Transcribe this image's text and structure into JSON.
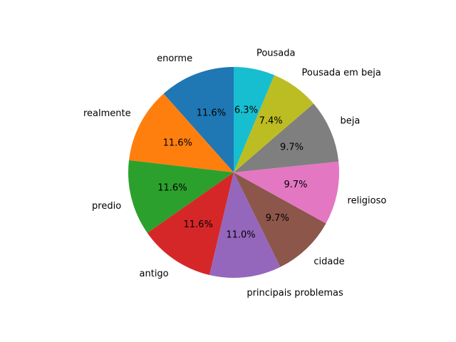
{
  "chart_data": {
    "type": "pie",
    "title": "",
    "start_angle_deg": 90,
    "direction": "counterclockwise",
    "legend": "none",
    "slices": [
      {
        "label": "enorme",
        "value": 11.6,
        "pct_label": "11.6%",
        "color": "#1f77b4"
      },
      {
        "label": "realmente",
        "value": 11.6,
        "pct_label": "11.6%",
        "color": "#ff7f0e"
      },
      {
        "label": "predio",
        "value": 11.6,
        "pct_label": "11.6%",
        "color": "#2ca02c"
      },
      {
        "label": "antigo",
        "value": 11.6,
        "pct_label": "11.6%",
        "color": "#d62728"
      },
      {
        "label": "principais problemas",
        "value": 11.0,
        "pct_label": "11.0%",
        "color": "#9467bd"
      },
      {
        "label": "cidade",
        "value": 9.7,
        "pct_label": "9.7%",
        "color": "#8c564b"
      },
      {
        "label": "religioso",
        "value": 9.7,
        "pct_label": "9.7%",
        "color": "#e377c2"
      },
      {
        "label": "beja",
        "value": 9.7,
        "pct_label": "9.7%",
        "color": "#7f7f7f"
      },
      {
        "label": "Pousada em beja",
        "value": 7.4,
        "pct_label": "7.4%",
        "color": "#bcbd22"
      },
      {
        "label": "Pousada",
        "value": 6.3,
        "pct_label": "6.3%",
        "color": "#17becf"
      }
    ]
  }
}
